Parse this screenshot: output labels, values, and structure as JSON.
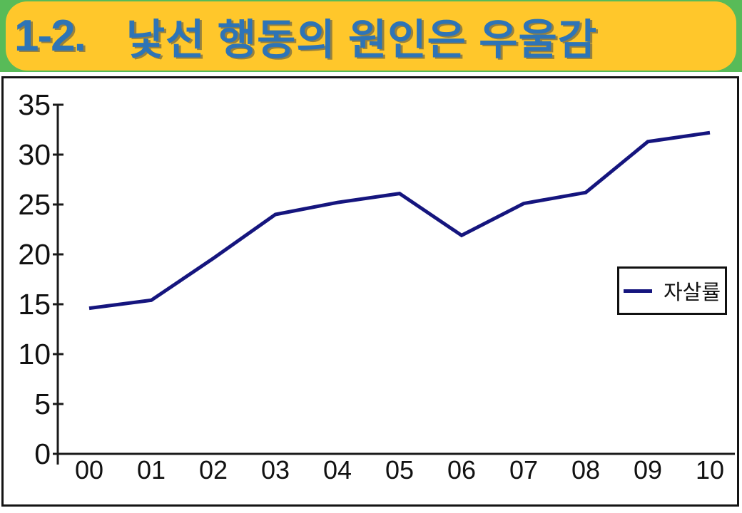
{
  "slide": {
    "title_number": "1-2.",
    "title_text": "낯선 행동의 원인은 우울감",
    "colors": {
      "background_top": "#58BB58",
      "banner": "#FFC72B",
      "title_text": "#2E74B6",
      "axis": "#1a1a1a",
      "line": "#15157E"
    }
  },
  "chart_data": {
    "type": "line",
    "title": "",
    "xlabel": "",
    "ylabel": "",
    "categories": [
      "00",
      "01",
      "02",
      "03",
      "04",
      "05",
      "06",
      "07",
      "08",
      "09",
      "10"
    ],
    "series": [
      {
        "name": "자살률",
        "color": "#15157E",
        "values": [
          14.6,
          15.4,
          19.6,
          24.0,
          25.2,
          26.1,
          21.9,
          25.1,
          26.2,
          31.3,
          32.2
        ]
      }
    ],
    "ylim": [
      0,
      35
    ],
    "ytick_step": 5,
    "grid": false,
    "legend_position": "middle-right"
  }
}
